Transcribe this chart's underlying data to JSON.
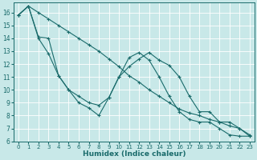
{
  "xlabel": "Humidex (Indice chaleur)",
  "background_color": "#c8e8e8",
  "grid_color": "#ffffff",
  "line_color": "#1a6b6b",
  "xlim": [
    -0.5,
    23.5
  ],
  "ylim": [
    6,
    16.8
  ],
  "yticks": [
    6,
    7,
    8,
    9,
    10,
    11,
    12,
    13,
    14,
    15,
    16
  ],
  "xticks": [
    0,
    1,
    2,
    3,
    4,
    5,
    6,
    7,
    8,
    9,
    10,
    11,
    12,
    13,
    14,
    15,
    16,
    17,
    18,
    19,
    20,
    21,
    22,
    23
  ],
  "series": [
    {
      "x": [
        0,
        1,
        2,
        3,
        4,
        5,
        6,
        7,
        8,
        9,
        10,
        11,
        12,
        13,
        14,
        15,
        16,
        17,
        18,
        19,
        20,
        21,
        22,
        23
      ],
      "y": [
        15.8,
        16.5,
        16.0,
        15.5,
        15.0,
        14.5,
        14.0,
        13.5,
        13.0,
        12.4,
        11.8,
        11.1,
        10.6,
        10.0,
        9.5,
        9.0,
        8.5,
        8.2,
        8.0,
        7.7,
        7.5,
        7.2,
        7.0,
        6.5
      ]
    },
    {
      "x": [
        0,
        1,
        2,
        3,
        4,
        5,
        6,
        7,
        8,
        9,
        10,
        11,
        12,
        13,
        14,
        15,
        16,
        17,
        18,
        19,
        20,
        21,
        22,
        23
      ],
      "y": [
        15.8,
        16.5,
        14.0,
        12.8,
        11.1,
        10.0,
        9.5,
        9.0,
        8.8,
        9.4,
        11.0,
        12.5,
        12.9,
        12.3,
        11.0,
        9.5,
        8.3,
        7.7,
        7.5,
        7.5,
        7.0,
        6.5,
        6.4,
        6.4
      ]
    },
    {
      "x": [
        0,
        1,
        2,
        3,
        4,
        5,
        6,
        7,
        8,
        9,
        10,
        11,
        12,
        13,
        14,
        15,
        16,
        17,
        18,
        19,
        20,
        21,
        22,
        23
      ],
      "y": [
        15.8,
        16.5,
        14.1,
        14.0,
        11.1,
        10.0,
        9.0,
        8.6,
        8.0,
        9.4,
        11.0,
        11.8,
        12.4,
        12.9,
        12.3,
        11.9,
        11.0,
        9.5,
        8.3,
        8.3,
        7.5,
        7.5,
        7.0,
        6.4
      ]
    }
  ]
}
